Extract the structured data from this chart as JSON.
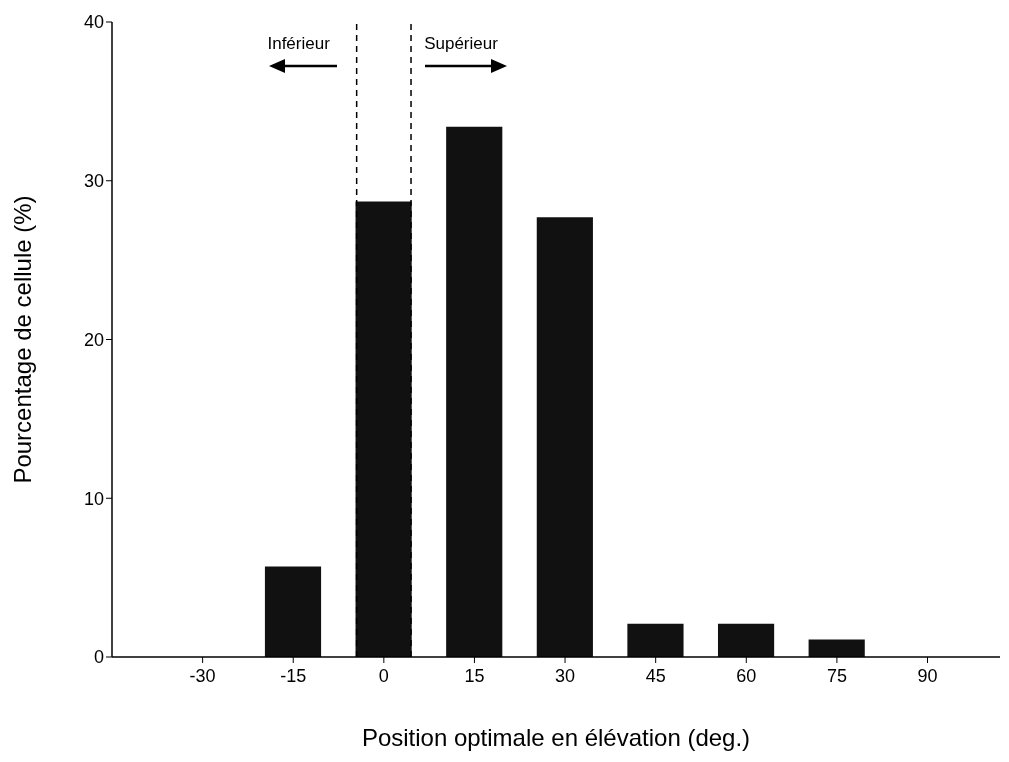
{
  "chart_data": {
    "type": "bar",
    "x": [
      -30,
      -15,
      0,
      15,
      30,
      45,
      60,
      75,
      90
    ],
    "values": [
      0,
      5.7,
      28.7,
      33.4,
      27.7,
      2.1,
      2.1,
      1.1,
      0
    ],
    "color": "#111111",
    "xlim": [
      -45,
      102
    ],
    "xticks": [
      -30,
      -15,
      0,
      15,
      30,
      45,
      60,
      75,
      90
    ],
    "ylim": [
      0,
      40
    ],
    "yticks": [
      0,
      10,
      20,
      30,
      40
    ],
    "xlabel": "Position optimale en élévation (deg.)",
    "ylabel": "Pourcentage de cellule (%)",
    "ref_lines": [
      {
        "axis": "x",
        "value": -4.5,
        "line_style": "dashed",
        "color": "#000000"
      },
      {
        "axis": "x",
        "value": 4.5,
        "line_style": "dashed",
        "color": "#000000"
      }
    ],
    "annotations": [
      "Inférieur",
      "Supérieur"
    ],
    "grid": false,
    "legend": false
  }
}
